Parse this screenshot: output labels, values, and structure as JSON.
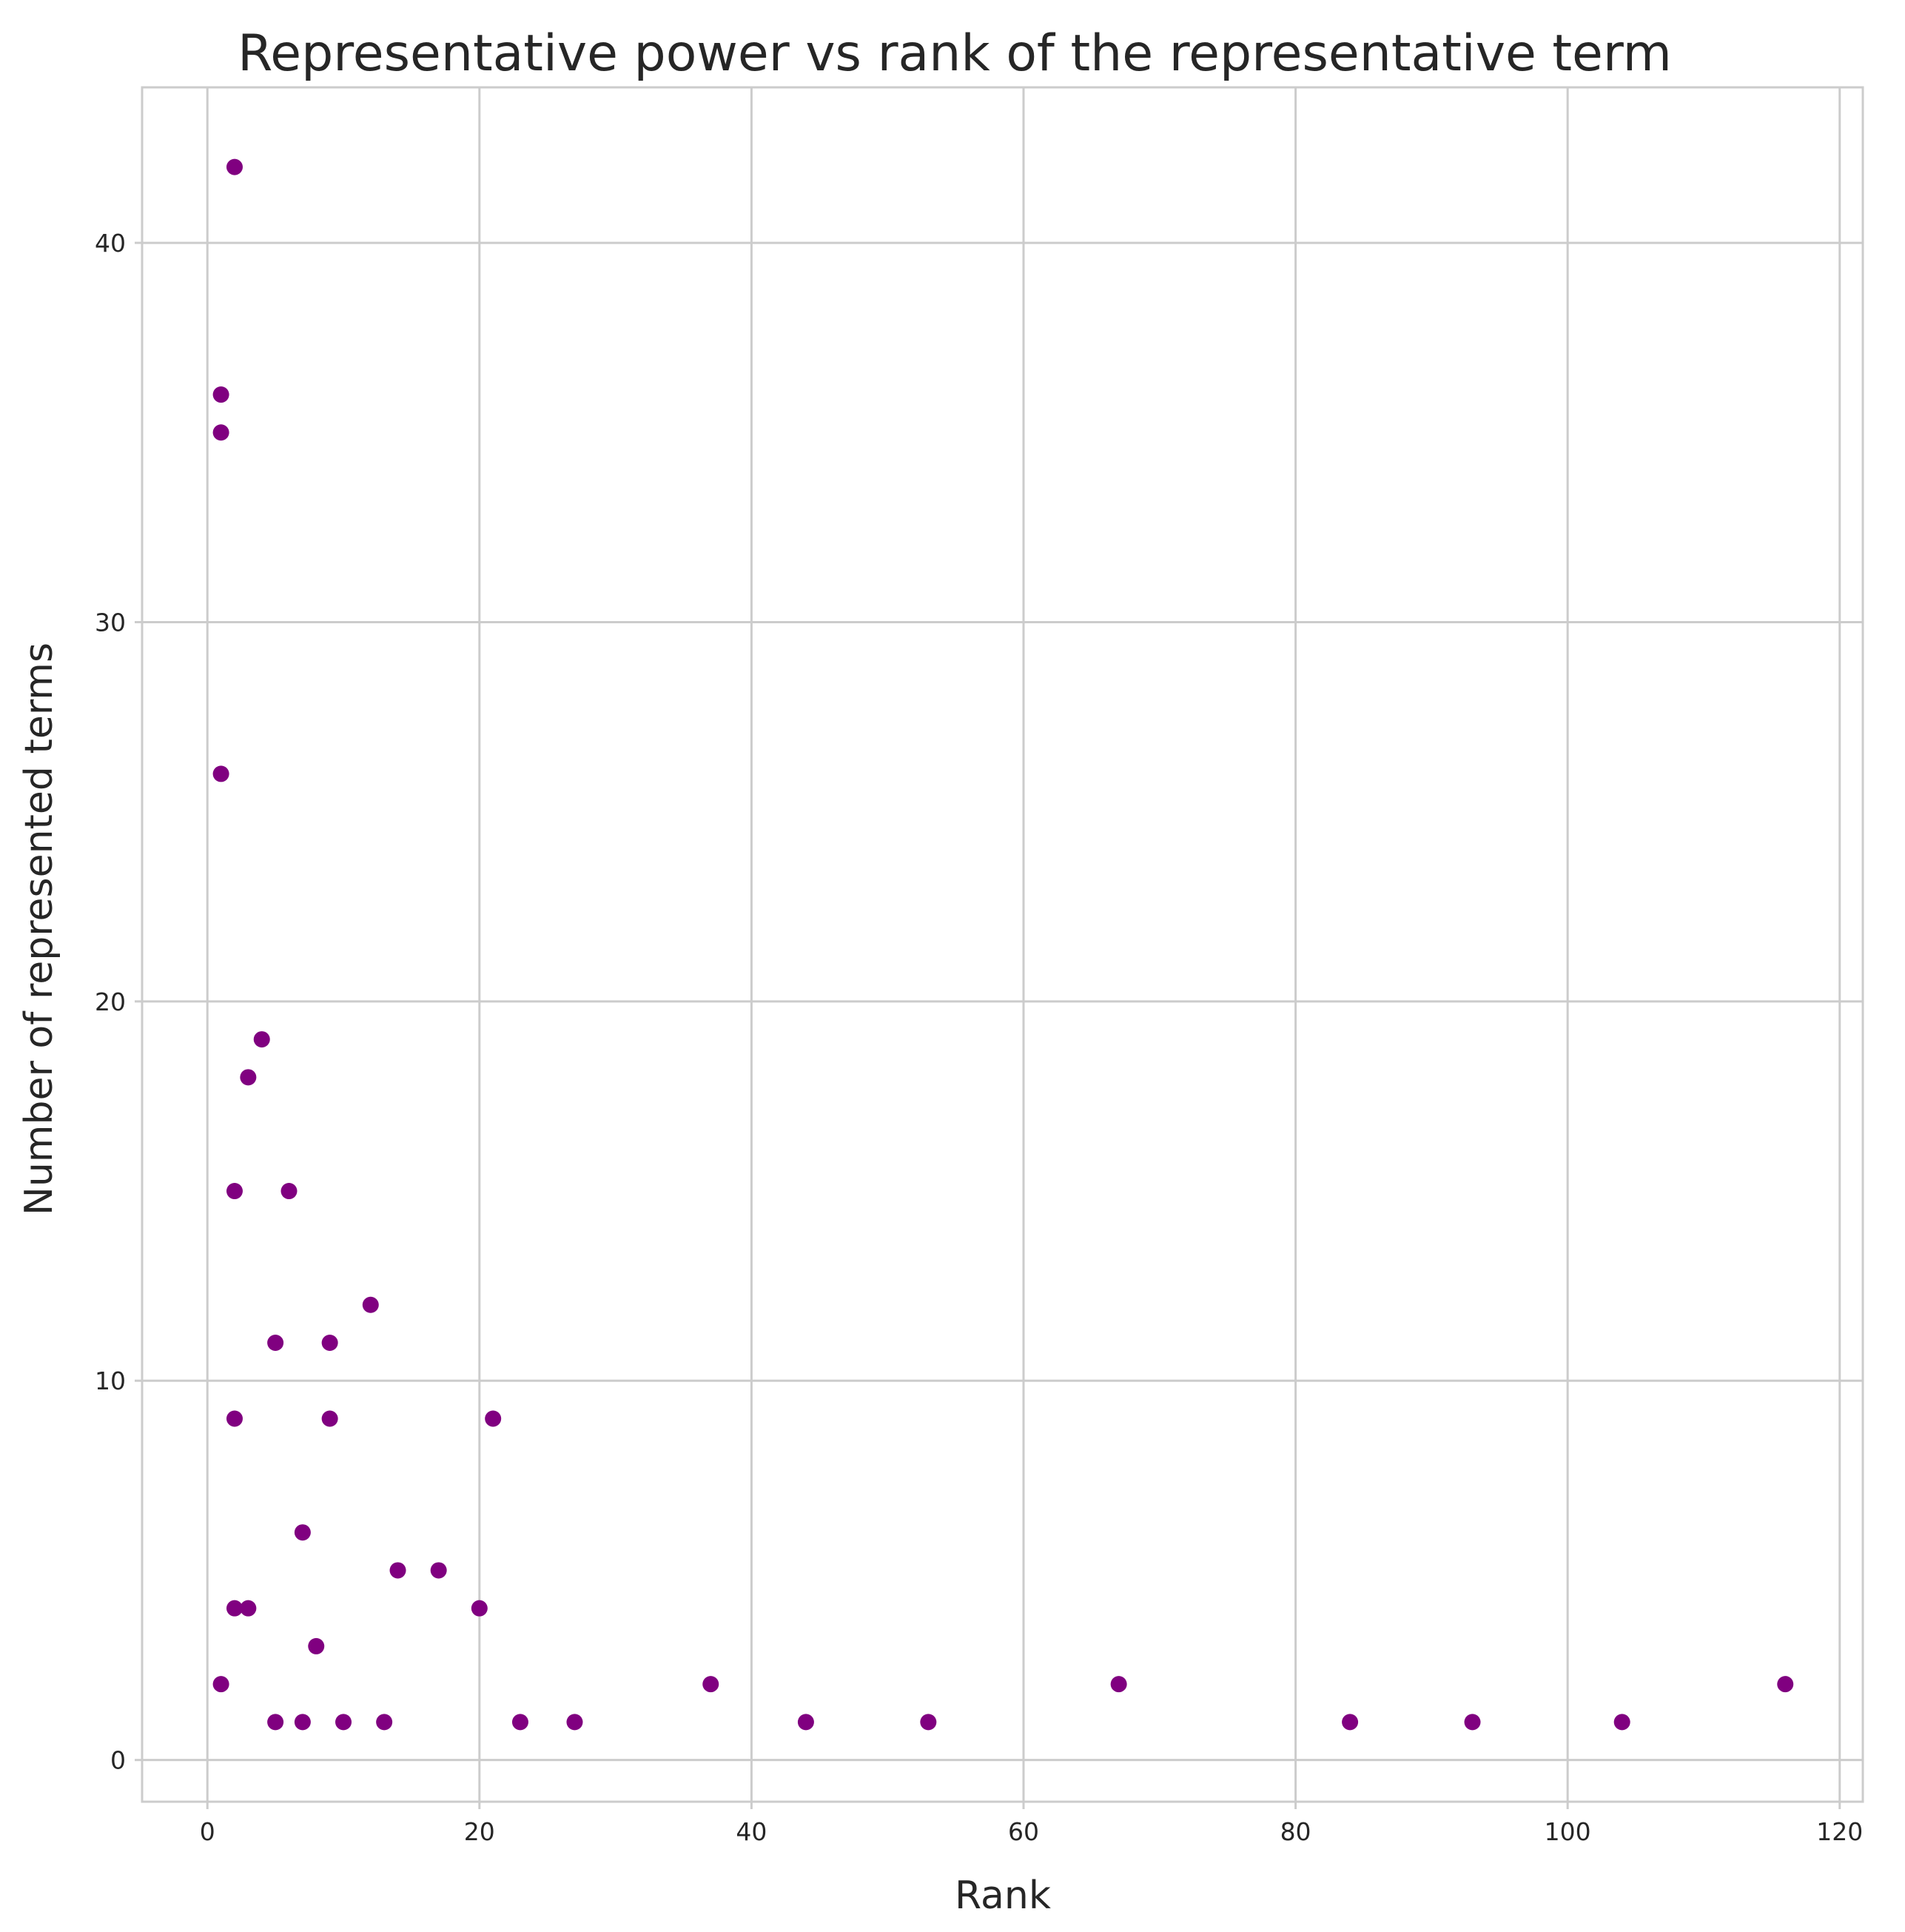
{
  "chart_data": {
    "type": "scatter",
    "title": "Representative power vs rank of the representative term",
    "xlabel": "Rank",
    "ylabel": "Number of represented terms",
    "xlim": [
      -4.8,
      121.7
    ],
    "ylim": [
      -1.1,
      44.1
    ],
    "xticks": [
      0,
      20,
      40,
      60,
      80,
      100,
      120
    ],
    "yticks": [
      0,
      10,
      20,
      30,
      40
    ],
    "grid": true,
    "legend": "none",
    "colors": {
      "marker": "#800080",
      "grid": "#cccccc",
      "text": "#262626",
      "background": "#ffffff"
    },
    "series": [
      {
        "x": [
          2,
          1,
          1,
          1,
          4,
          3,
          2,
          6,
          12,
          5,
          9,
          2,
          9,
          21,
          7,
          14,
          17,
          2,
          3,
          20,
          8,
          1,
          37,
          67,
          116,
          5,
          7,
          10,
          13,
          23,
          27,
          44,
          53,
          84,
          93,
          104
        ],
        "y": [
          42,
          36,
          35,
          26,
          19,
          18,
          15,
          15,
          12,
          11,
          11,
          9,
          9,
          9,
          6,
          5,
          5,
          4,
          4,
          4,
          3,
          2,
          2,
          2,
          2,
          1,
          1,
          1,
          1,
          1,
          1,
          1,
          1,
          1,
          1,
          1
        ]
      }
    ]
  }
}
